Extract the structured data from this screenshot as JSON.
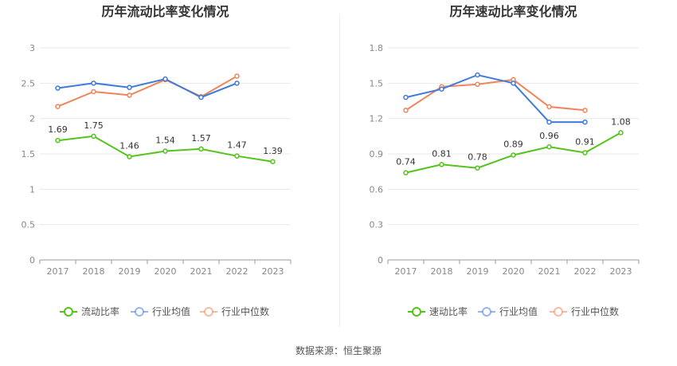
{
  "chart_data": [
    {
      "type": "line",
      "title": "历年流动比率变化情况",
      "categories": [
        "2017",
        "2018",
        "2019",
        "2020",
        "2021",
        "2022",
        "2023"
      ],
      "ylim": [
        0,
        3
      ],
      "yticks": [
        "0",
        "0.5",
        "1",
        "1.5",
        "2",
        "2.5",
        "3"
      ],
      "grid": true,
      "legend_position": "bottom",
      "series": [
        {
          "name": "流动比率",
          "color": "#52c41a",
          "values": [
            1.69,
            1.75,
            1.46,
            1.54,
            1.57,
            1.47,
            1.39
          ],
          "labels": [
            "1.69",
            "1.75",
            "1.46",
            "1.54",
            "1.57",
            "1.47",
            "1.39"
          ]
        },
        {
          "name": "行业均值",
          "color": "#3f7bd9",
          "values": [
            2.43,
            2.5,
            2.44,
            2.56,
            2.3,
            2.5,
            null
          ]
        },
        {
          "name": "行业中位数",
          "color": "#f0845a",
          "values": [
            2.17,
            2.38,
            2.33,
            2.55,
            2.31,
            2.6,
            null
          ]
        }
      ]
    },
    {
      "type": "line",
      "title": "历年速动比率变化情况",
      "categories": [
        "2017",
        "2018",
        "2019",
        "2020",
        "2021",
        "2022",
        "2023"
      ],
      "ylim": [
        0,
        1.8
      ],
      "yticks": [
        "0",
        "0.3",
        "0.6",
        "0.9",
        "1.2",
        "1.5",
        "1.8"
      ],
      "grid": true,
      "legend_position": "bottom",
      "series": [
        {
          "name": "速动比率",
          "color": "#52c41a",
          "values": [
            0.74,
            0.81,
            0.78,
            0.89,
            0.96,
            0.91,
            1.08
          ],
          "labels": [
            "0.74",
            "0.81",
            "0.78",
            "0.89",
            "0.96",
            "0.91",
            "1.08"
          ]
        },
        {
          "name": "行业均值",
          "color": "#3f7bd9",
          "values": [
            1.38,
            1.45,
            1.57,
            1.5,
            1.17,
            1.17,
            null
          ]
        },
        {
          "name": "行业中位数",
          "color": "#f0845a",
          "values": [
            1.27,
            1.47,
            1.49,
            1.53,
            1.3,
            1.27,
            null
          ]
        }
      ]
    }
  ],
  "footer": {
    "source": "数据来源：恒生聚源"
  }
}
